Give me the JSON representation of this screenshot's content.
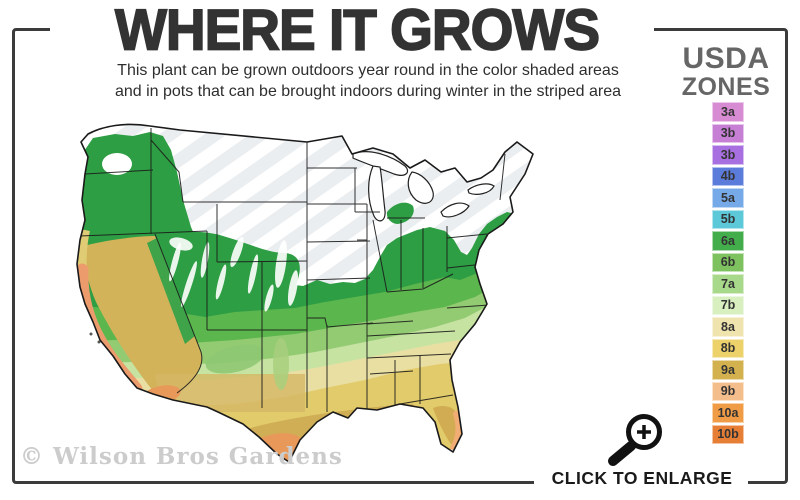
{
  "header": {
    "title": "WHERE IT GROWS",
    "subtitle_line1": "This plant can be grown outdoors year round in the color shaded areas",
    "subtitle_line2": "and in pots that can be brought indoors during winter in the striped area"
  },
  "legend": {
    "heading_line1": "USDA",
    "heading_line2": "ZONES",
    "zones": [
      {
        "label": "3a",
        "color": "#D78BD3"
      },
      {
        "label": "3b",
        "color": "#C77FD6"
      },
      {
        "label": "3b",
        "color": "#A86FE0"
      },
      {
        "label": "4b",
        "color": "#5C7CDC"
      },
      {
        "label": "5a",
        "color": "#76A9E8"
      },
      {
        "label": "5b",
        "color": "#5CC8D8"
      },
      {
        "label": "6a",
        "color": "#43AD4C"
      },
      {
        "label": "6b",
        "color": "#7DC25E"
      },
      {
        "label": "7a",
        "color": "#A8D88A"
      },
      {
        "label": "7b",
        "color": "#D8EFC0"
      },
      {
        "label": "8a",
        "color": "#EFE3AE"
      },
      {
        "label": "8b",
        "color": "#EDD26B"
      },
      {
        "label": "9a",
        "color": "#D3B14F"
      },
      {
        "label": "9b",
        "color": "#F4BE8C"
      },
      {
        "label": "10a",
        "color": "#F09B45"
      },
      {
        "label": "10b",
        "color": "#E67F35"
      }
    ]
  },
  "map": {
    "colors": {
      "shaded_green_dark": "#2E9E44",
      "shaded_green_medium": "#5CB64E",
      "shaded_green_light": "#93CB72",
      "shaded_green_pale": "#C6E3A2",
      "shaded_yellow_pale": "#EADFA2",
      "shaded_yellow": "#E2CB6A",
      "shaded_gold": "#CFAE55",
      "shaded_orange": "#E8995A",
      "shaded_salmon": "#EC9C6C",
      "striped_area": "#EBEEF0"
    }
  },
  "footer": {
    "watermark": "© Wilson Bros Gardens",
    "enlarge_label": "CLICK TO ENLARGE"
  }
}
